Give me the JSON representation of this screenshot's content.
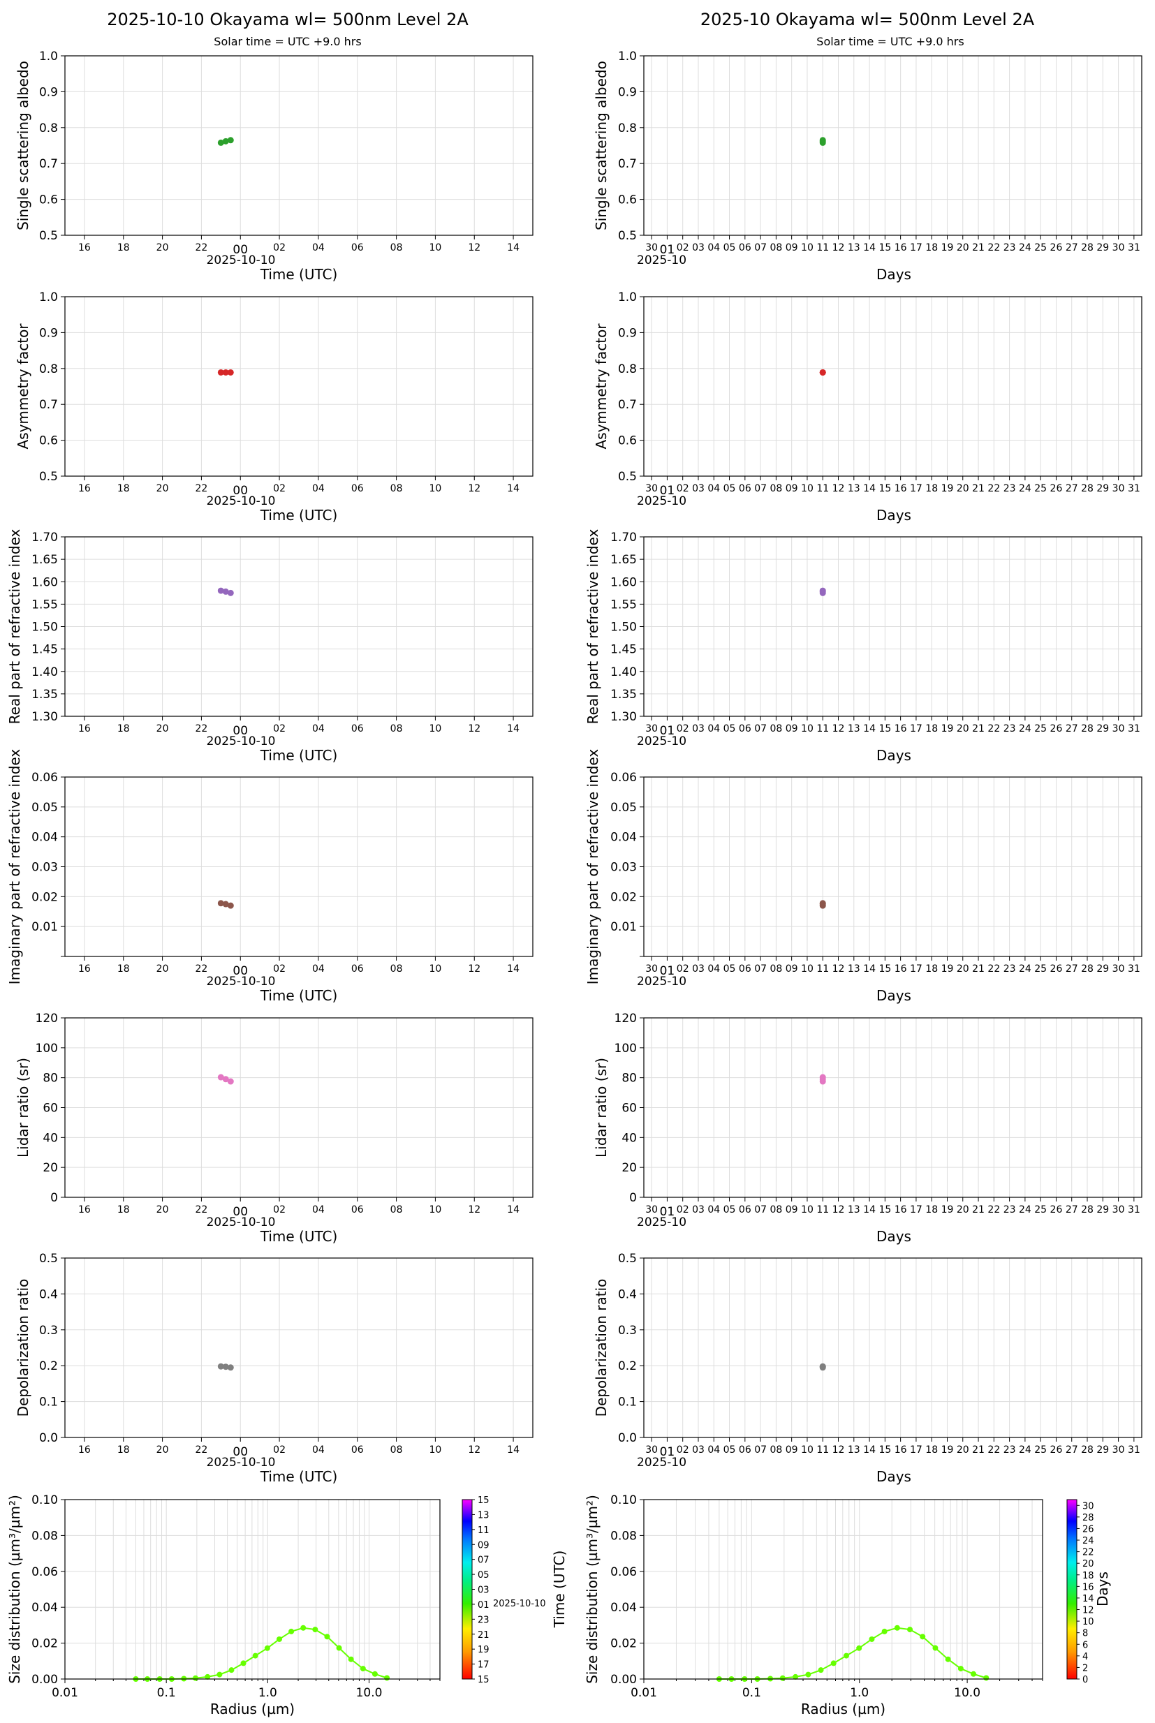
{
  "header": {
    "left_title": "2025-10-10  Okayama  wl= 500nm  Level 2A",
    "right_title": "2025-10  Okayama  wl= 500nm  Level 2A",
    "left_subtitle": "Solar time = UTC +9.0 hrs",
    "right_subtitle": "Solar time = UTC +9.0 hrs"
  },
  "axes_text": {
    "time_xlabel": "Time (UTC)",
    "days_xlabel": "Days",
    "date_label": "2025-10-10",
    "month_label": "2025-10",
    "time_ticks": [
      "16",
      "18",
      "20",
      "22",
      "00",
      "02",
      "04",
      "06",
      "08",
      "10",
      "12",
      "14"
    ],
    "day_ticks": [
      "30",
      "01",
      "02",
      "03",
      "04",
      "05",
      "06",
      "07",
      "08",
      "09",
      "10",
      "11",
      "12",
      "13",
      "14",
      "15",
      "16",
      "17",
      "18",
      "19",
      "20",
      "21",
      "22",
      "23",
      "24",
      "25",
      "26",
      "27",
      "28",
      "29",
      "30",
      "31"
    ],
    "radius_ticks": [
      "0.01",
      "0.1",
      "1.0",
      "10.0"
    ],
    "radius_xlabel": "Radius (µm)",
    "size_ylabel": "Size distribution (µm³/µm²)",
    "left_colorbar_label": "Time (UTC)",
    "left_colorbar_date": "2025-10-10",
    "left_colorbar_ticks": [
      "15",
      "13",
      "11",
      "09",
      "07",
      "05",
      "03",
      "01",
      "23",
      "21",
      "19",
      "17",
      "15"
    ],
    "right_colorbar_label": "Days",
    "right_colorbar_ticks": [
      "30",
      "28",
      "26",
      "24",
      "22",
      "20",
      "18",
      "16",
      "14",
      "12",
      "10",
      "8",
      "6",
      "4",
      "2",
      "0"
    ]
  },
  "chart_data": [
    {
      "type": "scatter",
      "panel": "ssa",
      "ylabel": "Single scattering albedo",
      "ylim": [
        0.5,
        1.0
      ],
      "yticks": [
        "0.5",
        "0.6",
        "0.7",
        "0.8",
        "0.9",
        "1.0"
      ],
      "color": "#2ca02c",
      "daily_points": [
        {
          "t": "2025-10-09 23:00",
          "y": 0.758
        },
        {
          "t": "2025-10-09 23:15",
          "y": 0.762
        },
        {
          "t": "2025-10-09 23:30",
          "y": 0.765
        }
      ],
      "monthly_points": [
        {
          "day": 10,
          "y": 0.758
        },
        {
          "day": 10,
          "y": 0.762
        },
        {
          "day": 10,
          "y": 0.765
        }
      ]
    },
    {
      "type": "scatter",
      "panel": "asym",
      "ylabel": "Asymmetry factor",
      "ylim": [
        0.5,
        1.0
      ],
      "yticks": [
        "0.5",
        "0.6",
        "0.7",
        "0.8",
        "0.9",
        "1.0"
      ],
      "color": "#d62728",
      "daily_points": [
        {
          "t": "2025-10-09 23:00",
          "y": 0.789
        },
        {
          "t": "2025-10-09 23:15",
          "y": 0.789
        },
        {
          "t": "2025-10-09 23:30",
          "y": 0.789
        }
      ],
      "monthly_points": [
        {
          "day": 10,
          "y": 0.789
        },
        {
          "day": 10,
          "y": 0.789
        },
        {
          "day": 10,
          "y": 0.789
        }
      ]
    },
    {
      "type": "scatter",
      "panel": "real_ri",
      "ylabel": "Real part of refractive index",
      "ylim": [
        1.3,
        1.7
      ],
      "yticks": [
        "1.30",
        "1.35",
        "1.40",
        "1.45",
        "1.50",
        "1.55",
        "1.60",
        "1.65",
        "1.70"
      ],
      "color": "#9467bd",
      "daily_points": [
        {
          "t": "2025-10-09 23:00",
          "y": 1.58
        },
        {
          "t": "2025-10-09 23:15",
          "y": 1.578
        },
        {
          "t": "2025-10-09 23:30",
          "y": 1.575
        }
      ],
      "monthly_points": [
        {
          "day": 10,
          "y": 1.58
        },
        {
          "day": 10,
          "y": 1.578
        },
        {
          "day": 10,
          "y": 1.575
        }
      ]
    },
    {
      "type": "scatter",
      "panel": "imag_ri",
      "ylabel": "Imaginary part of refractive index",
      "ylim": [
        0.0,
        0.06
      ],
      "yticks": [
        "",
        "0.01",
        "0.02",
        "0.03",
        "0.04",
        "0.05",
        "0.06"
      ],
      "color": "#8c564b",
      "daily_points": [
        {
          "t": "2025-10-09 23:00",
          "y": 0.0178
        },
        {
          "t": "2025-10-09 23:15",
          "y": 0.0175
        },
        {
          "t": "2025-10-09 23:30",
          "y": 0.017
        }
      ],
      "monthly_points": [
        {
          "day": 10,
          "y": 0.0178
        },
        {
          "day": 10,
          "y": 0.0175
        },
        {
          "day": 10,
          "y": 0.017
        }
      ]
    },
    {
      "type": "scatter",
      "panel": "lidar",
      "ylabel": "Lidar ratio (sr)",
      "ylim": [
        0,
        120
      ],
      "yticks": [
        "0",
        "20",
        "40",
        "60",
        "80",
        "100",
        "120"
      ],
      "color": "#e377c2",
      "daily_points": [
        {
          "t": "2025-10-09 23:00",
          "y": 80.3
        },
        {
          "t": "2025-10-09 23:15",
          "y": 79.0
        },
        {
          "t": "2025-10-09 23:30",
          "y": 77.5
        }
      ],
      "monthly_points": [
        {
          "day": 10,
          "y": 80.3
        },
        {
          "day": 10,
          "y": 79.0
        },
        {
          "day": 10,
          "y": 77.5
        }
      ]
    },
    {
      "type": "scatter",
      "panel": "depol",
      "ylabel": "Depolarization ratio",
      "ylim": [
        0.0,
        0.5
      ],
      "yticks": [
        "0.0",
        "0.1",
        "0.2",
        "0.3",
        "0.4",
        "0.5"
      ],
      "color": "#7f7f7f",
      "daily_points": [
        {
          "t": "2025-10-09 23:00",
          "y": 0.198
        },
        {
          "t": "2025-10-09 23:15",
          "y": 0.197
        },
        {
          "t": "2025-10-09 23:30",
          "y": 0.195
        }
      ],
      "monthly_points": [
        {
          "day": 10,
          "y": 0.198
        },
        {
          "day": 10,
          "y": 0.197
        },
        {
          "day": 10,
          "y": 0.195
        }
      ]
    },
    {
      "type": "line",
      "panel": "size_distribution",
      "xscale": "log",
      "xlabel": "Radius (µm)",
      "ylabel": "Size distribution (µm³/µm²)",
      "xlim": [
        0.01,
        50
      ],
      "ylim": [
        0.0,
        0.1
      ],
      "yticks": [
        "0.00",
        "0.02",
        "0.04",
        "0.06",
        "0.08",
        "0.10"
      ],
      "color": "#66ff00",
      "x": [
        0.05,
        0.065,
        0.086,
        0.113,
        0.149,
        0.194,
        0.255,
        0.335,
        0.439,
        0.576,
        0.756,
        0.992,
        1.302,
        1.708,
        2.241,
        2.94,
        3.857,
        5.061,
        6.641,
        8.713,
        11.43,
        15.0
      ],
      "y": [
        0.0,
        0.0,
        0.0,
        0.0,
        0.0002,
        0.0005,
        0.0012,
        0.0025,
        0.005,
        0.0088,
        0.013,
        0.0172,
        0.0222,
        0.0265,
        0.0285,
        0.0276,
        0.0236,
        0.0173,
        0.011,
        0.0058,
        0.0028,
        0.0006
      ]
    }
  ]
}
